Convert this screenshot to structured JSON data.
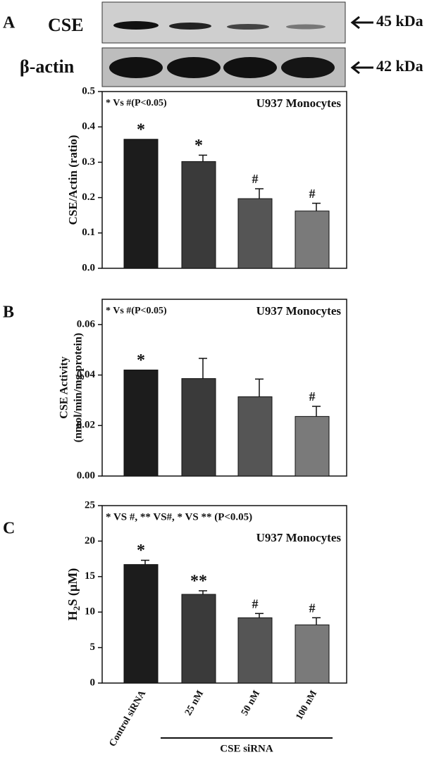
{
  "blot": {
    "panel_label": "A",
    "rows": [
      {
        "label": "CSE",
        "size": "45 kDa"
      },
      {
        "label": "β-actin",
        "size": "42 kDa"
      }
    ]
  },
  "chart_data": [
    {
      "type": "bar",
      "y_label": "CSE/Actin (ratio)",
      "note": "* Vs #(P<0.05)",
      "subtitle": "U937 Monocytes",
      "values": [
        0.365,
        0.302,
        0.197,
        0.162
      ],
      "errors": [
        0,
        0.018,
        0.028,
        0.022
      ],
      "annotations": [
        "*",
        "*",
        "#",
        "#"
      ],
      "colors": [
        "#1c1c1c",
        "#3a3a3a",
        "#555555",
        "#7a7a7a"
      ],
      "ylim": [
        0,
        0.5
      ],
      "yticks": [
        {
          "value": 0,
          "label": "0.0"
        },
        0.1,
        0.2,
        0.3,
        0.4,
        0.5
      ]
    },
    {
      "type": "bar",
      "panel_label": "B",
      "y_label": [
        "CSE Activity",
        "(nmol/min/mg protein)"
      ],
      "note": "* Vs #(P<0.05)",
      "subtitle": "U937 Monocytes",
      "values": [
        0.042,
        0.0386,
        0.0314,
        0.0236
      ],
      "errors": [
        0,
        0.008,
        0.007,
        0.004
      ],
      "annotations": [
        "*",
        null,
        null,
        "#"
      ],
      "colors": [
        "#1c1c1c",
        "#3a3a3a",
        "#555555",
        "#7a7a7a"
      ],
      "ylim": [
        0,
        0.07
      ],
      "yticks": [
        {
          "value": 0,
          "label": "0.00"
        },
        {
          "value": 0.02,
          "label": "0.02"
        },
        {
          "value": 0.04,
          "label": "0.04"
        },
        {
          "value": 0.06,
          "label": "0.06"
        }
      ]
    },
    {
      "type": "bar",
      "panel_label": "C",
      "y_label_parts": [
        "H",
        "2",
        "S (µM)"
      ],
      "note": "* VS #, ** VS#, * VS ** (P<0.05)",
      "subtitle": "U937 Monocytes",
      "categories": [
        "Control siRNA",
        "25 nM",
        "50 nM",
        "100 nM"
      ],
      "group_label": "CSE siRNA",
      "values": [
        16.7,
        12.5,
        9.2,
        8.2
      ],
      "errors": [
        0.6,
        0.5,
        0.6,
        1.0
      ],
      "annotations": [
        "*",
        "**",
        "#",
        "#"
      ],
      "colors": [
        "#1c1c1c",
        "#3a3a3a",
        "#555555",
        "#7a7a7a"
      ],
      "ylim": [
        0,
        25
      ],
      "yticks": [
        0,
        5,
        10,
        15,
        20,
        25
      ]
    }
  ]
}
